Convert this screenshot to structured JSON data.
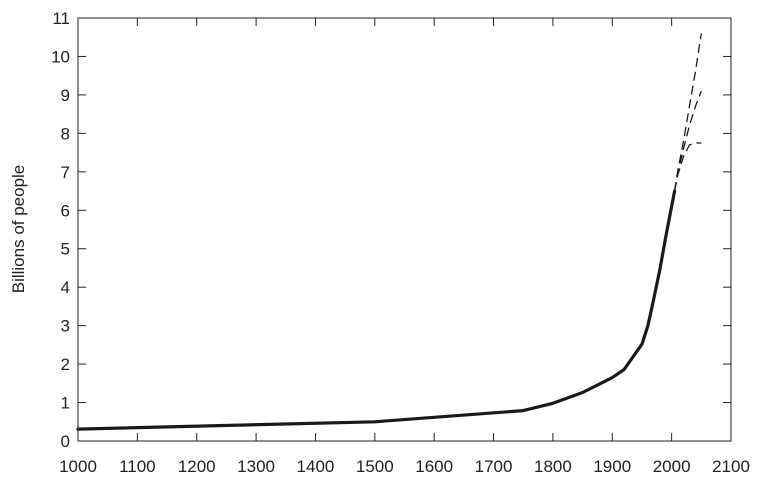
{
  "chart_data": {
    "type": "line",
    "ylabel": "Billions of people",
    "xlabel": "",
    "xlim": [
      1000,
      2100
    ],
    "ylim": [
      0,
      11
    ],
    "x_ticks": [
      1000,
      1100,
      1200,
      1300,
      1400,
      1500,
      1600,
      1700,
      1800,
      1900,
      2000,
      2100
    ],
    "y_ticks": [
      0,
      1,
      2,
      3,
      4,
      5,
      6,
      7,
      8,
      9,
      10,
      11
    ],
    "grid": false,
    "series": [
      {
        "style": "solid",
        "x": [
          1000,
          1500,
          1750,
          1800,
          1850,
          1900,
          1920,
          1940,
          1950,
          1960,
          1970,
          1980,
          1990,
          2000,
          2005
        ],
        "y": [
          0.31,
          0.5,
          0.79,
          0.98,
          1.26,
          1.65,
          1.86,
          2.3,
          2.52,
          3.0,
          3.7,
          4.45,
          5.3,
          6.1,
          6.5
        ]
      },
      {
        "style": "dashed",
        "x": [
          2005,
          2010,
          2020,
          2030,
          2040,
          2050
        ],
        "y": [
          6.5,
          7.0,
          7.8,
          8.7,
          9.6,
          10.6
        ]
      },
      {
        "style": "dashed",
        "x": [
          2005,
          2010,
          2020,
          2030,
          2040,
          2050
        ],
        "y": [
          6.5,
          6.95,
          7.6,
          8.2,
          8.7,
          9.1
        ]
      },
      {
        "style": "dashed",
        "x": [
          2005,
          2010,
          2020,
          2030,
          2040,
          2050
        ],
        "y": [
          6.5,
          6.9,
          7.4,
          7.7,
          7.75,
          7.75
        ]
      }
    ]
  }
}
